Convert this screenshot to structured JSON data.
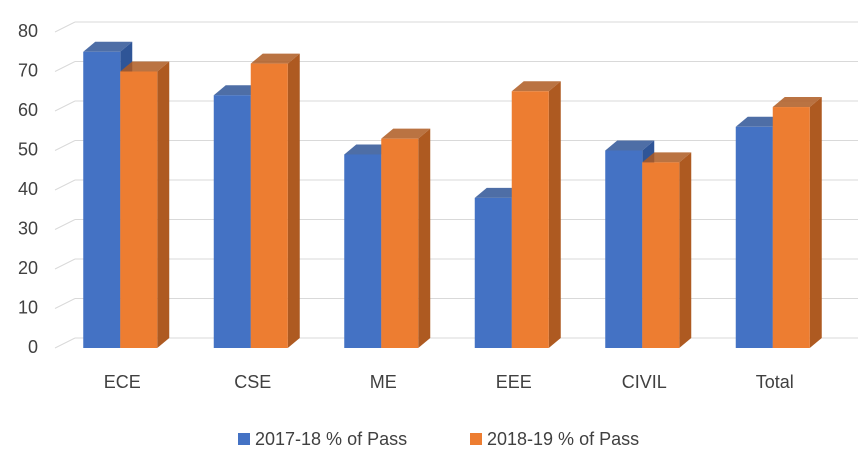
{
  "chart_data": {
    "type": "bar3d",
    "categories": [
      "ECE",
      "CSE",
      "ME",
      "EEE",
      "CIVIL",
      "Total"
    ],
    "series": [
      {
        "name": "2017-18 % of Pass",
        "color": "#4472c4",
        "side": "#2f5597",
        "values": [
          75,
          64,
          49,
          38,
          50,
          56
        ]
      },
      {
        "name": "2018-19 % of Pass",
        "color": "#ed7d31",
        "side": "#ae5a21",
        "values": [
          70,
          72,
          53,
          65,
          47,
          61
        ]
      }
    ],
    "ylim": [
      0,
      80
    ],
    "yticks": [
      0,
      10,
      20,
      30,
      40,
      50,
      60,
      70,
      80
    ],
    "grid": true,
    "legend": "bottom"
  }
}
